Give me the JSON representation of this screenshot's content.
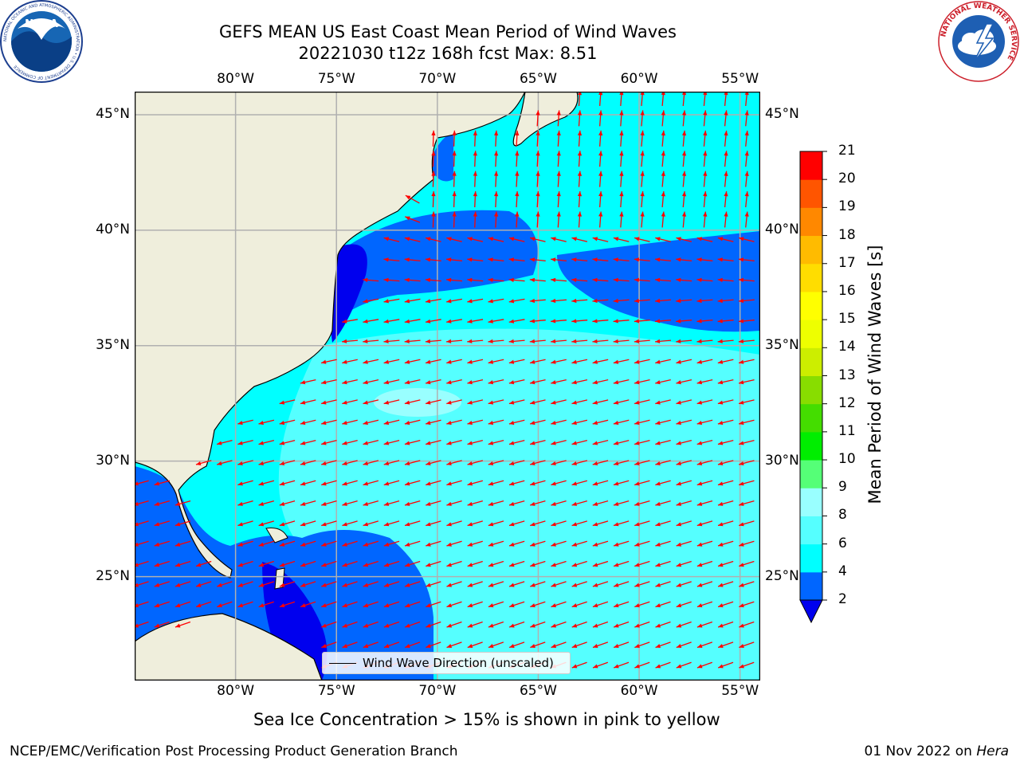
{
  "title": {
    "line1": "GEFS MEAN US East Coast Mean Period of Wind Waves",
    "line2": "20221030 t12z 168h fcst   Max: 8.51"
  },
  "map": {
    "lon_range": [
      -85,
      -54
    ],
    "lat_range": [
      20.5,
      46
    ],
    "lon_ticks": [
      {
        "value": -80,
        "label": "80°W"
      },
      {
        "value": -75,
        "label": "75°W"
      },
      {
        "value": -70,
        "label": "70°W"
      },
      {
        "value": -65,
        "label": "65°W"
      },
      {
        "value": -60,
        "label": "60°W"
      },
      {
        "value": -55,
        "label": "55°W"
      }
    ],
    "lat_ticks": [
      {
        "value": 45,
        "label": "45°N"
      },
      {
        "value": 40,
        "label": "40°N"
      },
      {
        "value": 35,
        "label": "35°N"
      },
      {
        "value": 30,
        "label": "30°N"
      },
      {
        "value": 25,
        "label": "25°N"
      }
    ],
    "land_color": "#efeedc",
    "grid_color": "#b0b0b0",
    "arrow_color": "#ff0000",
    "legend_label": "Wind Wave Direction (unscaled)"
  },
  "colorbar": {
    "label": "Mean Period of Wind Waves [s]",
    "levels": [
      2,
      4,
      6,
      8,
      9,
      10,
      11,
      12,
      13,
      14,
      15,
      16,
      17,
      18,
      19,
      20,
      21
    ],
    "colors": [
      "#0066ff",
      "#00ffff",
      "#55ffff",
      "#99ffff",
      "#55ff77",
      "#00ee00",
      "#44dd00",
      "#88dd00",
      "#ccee00",
      "#eeff00",
      "#ffff00",
      "#ffdd00",
      "#ffbb00",
      "#ff8800",
      "#ff5500",
      "#ff0000"
    ],
    "under_color": "#0000ee",
    "tick_labels": [
      "2",
      "4",
      "6",
      "8",
      "9",
      "10",
      "11",
      "12",
      "13",
      "14",
      "15",
      "16",
      "17",
      "18",
      "19",
      "20",
      "21"
    ]
  },
  "subtitle": "Sea Ice Concentration > 15% is shown in pink to yellow",
  "footer": {
    "left": "NCEP/EMC/Verification Post Processing Product Generation Branch",
    "date": "01 Nov 2022 on ",
    "host": "Hera"
  },
  "logos": {
    "left_name": "NOAA",
    "left_ring": "NATIONAL OCEANIC AND ATMOSPHERIC ADMINISTRATION • U.S. DEPARTMENT OF COMMERCE",
    "right_ring": "NATIONAL WEATHER SERVICE"
  }
}
